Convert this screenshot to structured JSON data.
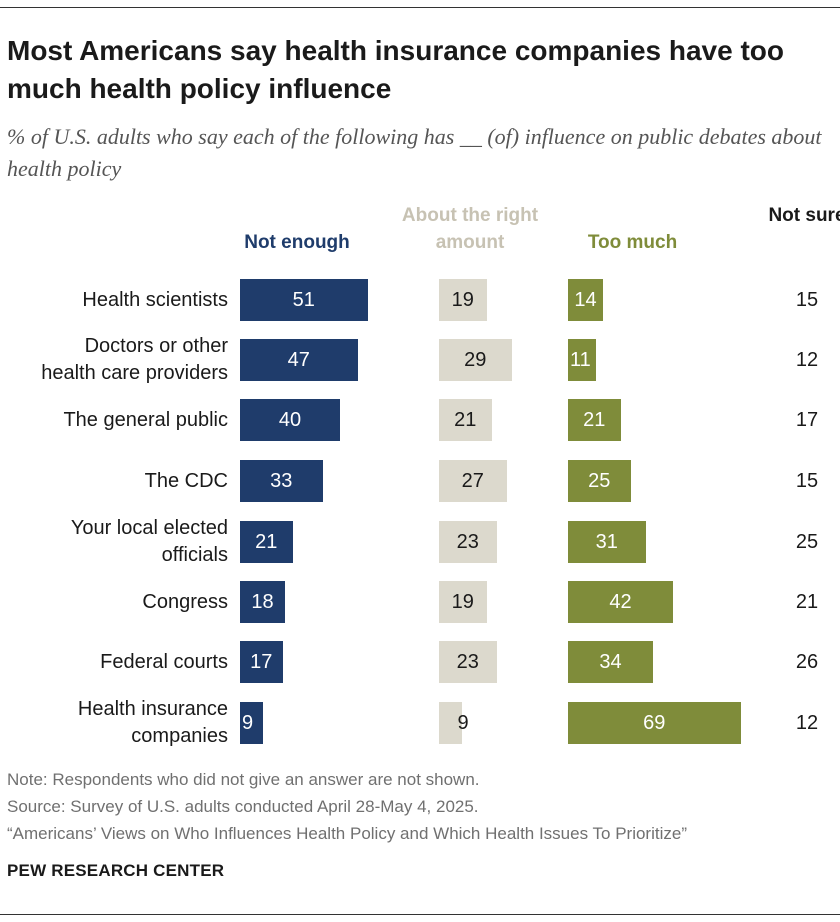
{
  "title": "Most Americans say health insurance companies have too much health policy influence",
  "subtitle": "% of U.S. adults who say each of the following has __ (of) influence on public debates about health policy",
  "column_headers": {
    "not_enough": "Not enough",
    "about_right": "About the right amount",
    "too_much": "Too much",
    "not_sure": "Not sure"
  },
  "colors": {
    "not_enough": "#1f3c6b",
    "about_right": "#dcd9cd",
    "too_much": "#7f8c3a",
    "about_right_header": "#c7c2b3"
  },
  "chart_data": {
    "type": "bar",
    "orientation": "horizontal",
    "layout": "diverging-columns",
    "title": "Most Americans say health insurance companies have too much health policy influence",
    "categories": [
      [
        "Health scientists"
      ],
      [
        "Doctors or other",
        "health care providers"
      ],
      [
        "The general public"
      ],
      [
        "The CDC"
      ],
      [
        "Your local elected",
        "officials"
      ],
      [
        "Congress"
      ],
      [
        "Federal courts"
      ],
      [
        "Health insurance",
        "companies"
      ]
    ],
    "series": [
      {
        "name": "Not enough",
        "values": [
          51,
          47,
          40,
          33,
          21,
          18,
          17,
          9
        ]
      },
      {
        "name": "About the right amount",
        "values": [
          19,
          29,
          21,
          27,
          23,
          19,
          23,
          9
        ]
      },
      {
        "name": "Too much",
        "values": [
          14,
          11,
          21,
          25,
          31,
          42,
          34,
          69
        ]
      }
    ],
    "not_sure": [
      15,
      12,
      17,
      15,
      25,
      21,
      26,
      12
    ],
    "xlabel": "",
    "ylabel": ""
  },
  "notes": {
    "note": "Note: Respondents who did not give an answer are not shown.",
    "source": "Source: Survey of U.S. adults conducted April 28-May 4, 2025.",
    "report": "“Americans’ Views on Who Influences Health Policy and Which Health Issues To Prioritize”"
  },
  "brand": "PEW RESEARCH CENTER"
}
